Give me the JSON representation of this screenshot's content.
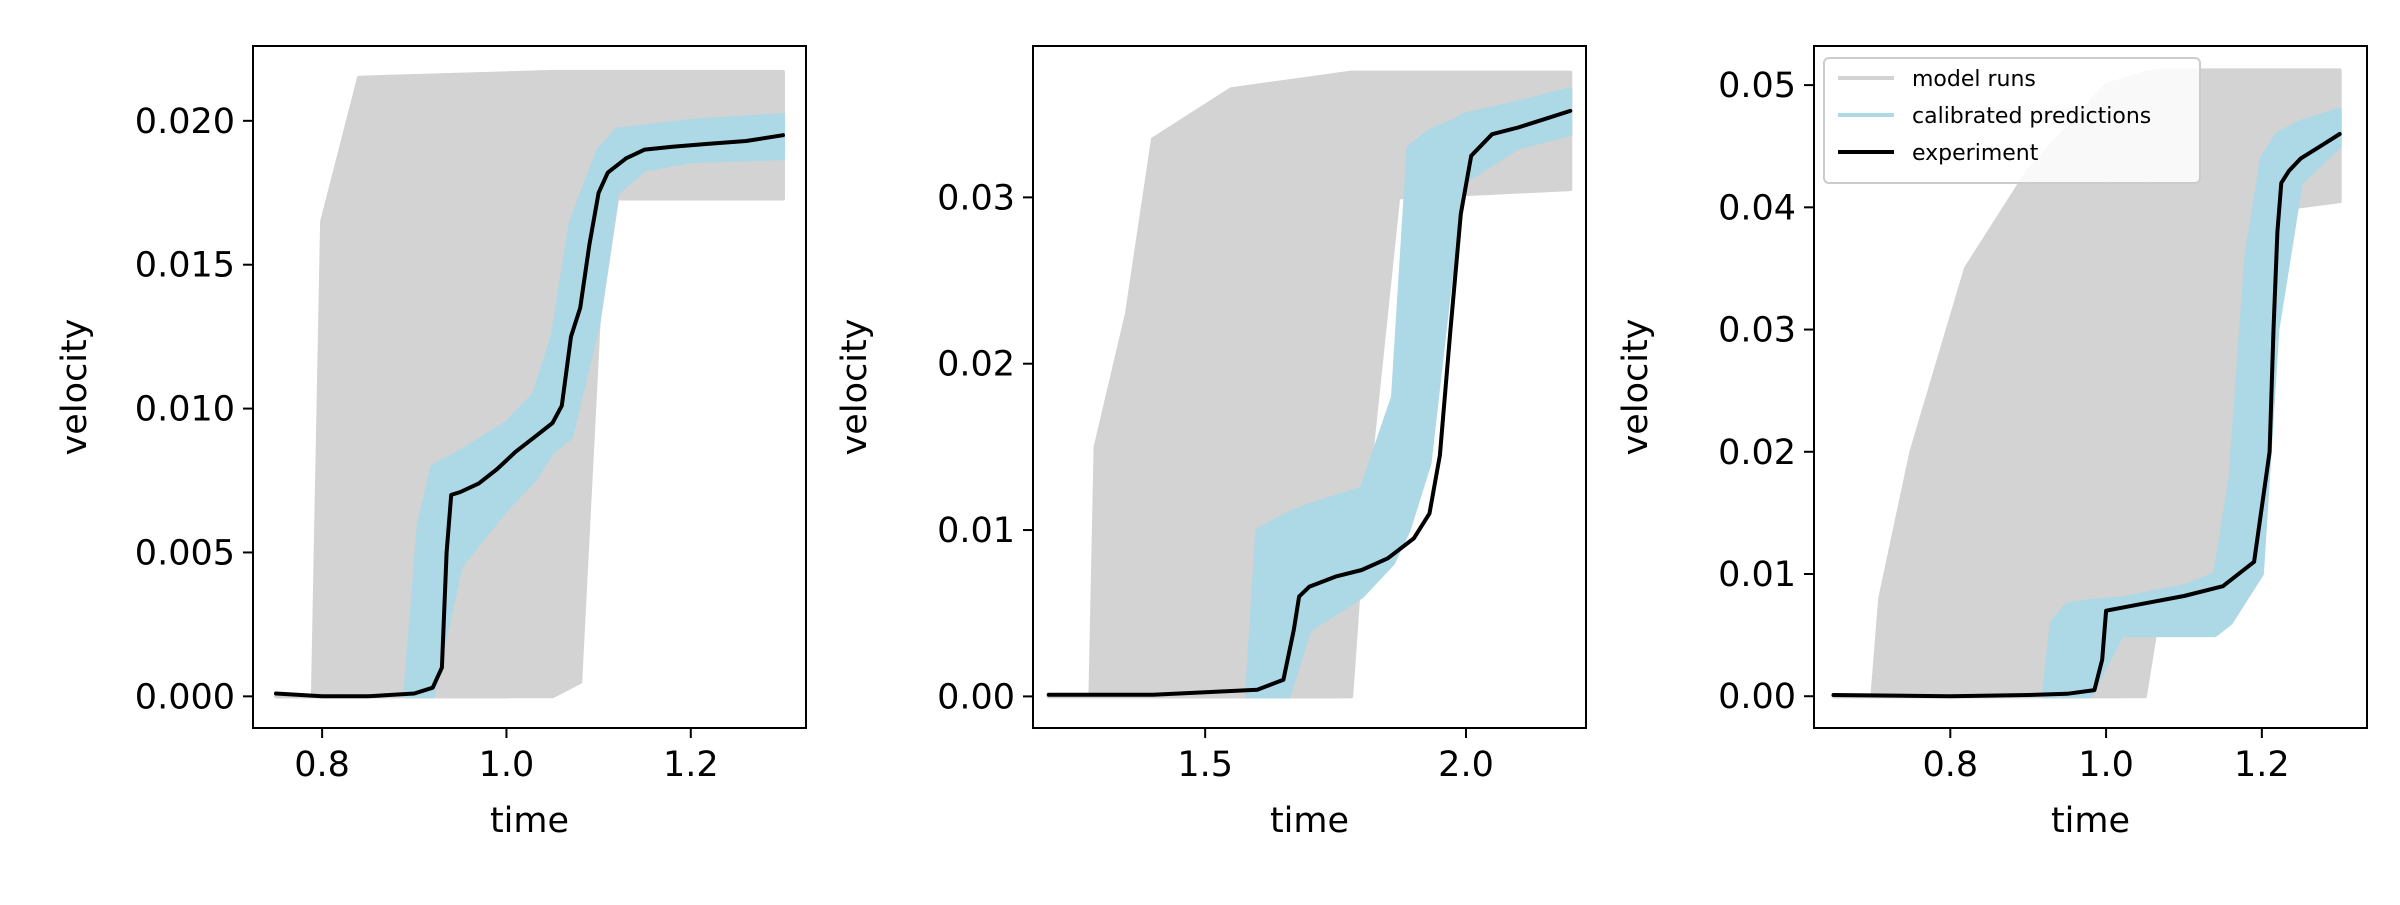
{
  "chart_data": [
    {
      "type": "line",
      "xlabel": "time",
      "ylabel": "velocity",
      "xlim": [
        0.725,
        1.325
      ],
      "ylim": [
        -0.0011,
        0.0226
      ],
      "xticks": [
        0.8,
        1.0,
        1.2
      ],
      "xtick_labels": [
        "0.8",
        "1.0",
        "1.2"
      ],
      "yticks": [
        0.0,
        0.005,
        0.01,
        0.015,
        0.02
      ],
      "ytick_labels": [
        "0.000",
        "0.005",
        "0.010",
        "0.015",
        "0.020"
      ],
      "legend": null,
      "series": [
        {
          "role": "model_runs",
          "color": "#d3d3d3",
          "envelope": [
            [
              0.75,
              0.0,
              0.0
            ],
            [
              0.79,
              0.0,
              0.0
            ],
            [
              0.8,
              0.0,
              0.0165
            ],
            [
              0.84,
              0.0,
              0.0215
            ],
            [
              1.05,
              0.0,
              0.0217
            ],
            [
              1.08,
              0.0005,
              0.0217
            ],
            [
              1.1,
              0.013,
              0.0217
            ],
            [
              1.12,
              0.0173,
              0.0217
            ],
            [
              1.3,
              0.0173,
              0.0217
            ]
          ],
          "runs": [
            {
              "x": [
                0.75,
                0.805,
                0.81,
                0.85,
                1.3
              ],
              "y": [
                0.0,
                0.0,
                0.0165,
                0.0215,
                0.0215
              ]
            },
            {
              "x": [
                0.75,
                0.82,
                0.83,
                0.9,
                1.3
              ],
              "y": [
                0.0,
                0.0,
                0.018,
                0.0205,
                0.0205
              ]
            },
            {
              "x": [
                0.75,
                0.85,
                0.86,
                0.95,
                1.3
              ],
              "y": [
                0.0,
                0.0,
                0.0175,
                0.02,
                0.02
              ]
            },
            {
              "x": [
                0.75,
                0.88,
                0.89,
                1.0,
                1.3
              ],
              "y": [
                0.0,
                0.0,
                0.019,
                0.021,
                0.021
              ]
            },
            {
              "x": [
                0.75,
                1.0,
                1.06,
                1.09,
                1.12,
                1.3
              ],
              "y": [
                0.0,
                0.0,
                0.0005,
                0.011,
                0.0185,
                0.0185
              ]
            },
            {
              "x": [
                0.75,
                1.0,
                1.06,
                1.07,
                1.08,
                1.11,
                1.3
              ],
              "y": [
                0.0,
                0.0,
                0.0008,
                0.002,
                0.008,
                0.0175,
                0.0178
              ]
            }
          ]
        },
        {
          "role": "calibrated_predictions",
          "color": "#add8e6",
          "envelope": [
            [
              0.89,
              0.0,
              0.0
            ],
            [
              0.905,
              0.0,
              0.006
            ],
            [
              0.92,
              0.0,
              0.008
            ],
            [
              0.95,
              0.0045,
              0.0085
            ],
            [
              1.0,
              0.0065,
              0.0095
            ],
            [
              1.03,
              0.0075,
              0.0105
            ],
            [
              1.05,
              0.0085,
              0.0125
            ],
            [
              1.07,
              0.009,
              0.0165
            ],
            [
              1.1,
              0.013,
              0.019
            ],
            [
              1.12,
              0.0175,
              0.0197
            ],
            [
              1.15,
              0.0183,
              0.0198
            ],
            [
              1.2,
              0.0186,
              0.02
            ],
            [
              1.3,
              0.0187,
              0.0202
            ]
          ]
        },
        {
          "name": "experiment",
          "role": "experiment",
          "color": "#000000",
          "x": [
            0.75,
            0.8,
            0.85,
            0.9,
            0.92,
            0.93,
            0.935,
            0.94,
            0.95,
            0.97,
            0.99,
            1.01,
            1.03,
            1.05,
            1.06,
            1.07,
            1.08,
            1.09,
            1.1,
            1.11,
            1.13,
            1.15,
            1.18,
            1.22,
            1.26,
            1.3
          ],
          "y": [
            0.0001,
            0.0,
            0.0,
            0.0001,
            0.0003,
            0.001,
            0.005,
            0.007,
            0.0071,
            0.0074,
            0.0079,
            0.0085,
            0.009,
            0.0095,
            0.0101,
            0.0125,
            0.0135,
            0.0157,
            0.0175,
            0.0182,
            0.0187,
            0.019,
            0.0191,
            0.0192,
            0.0193,
            0.0195
          ]
        }
      ]
    },
    {
      "type": "line",
      "xlabel": "time",
      "ylabel": "velocity",
      "xlim": [
        1.17,
        2.23
      ],
      "ylim": [
        -0.0019,
        0.0391
      ],
      "xticks": [
        1.5,
        2.0
      ],
      "xtick_labels": [
        "1.5",
        "2.0"
      ],
      "yticks": [
        0.0,
        0.01,
        0.02,
        0.03
      ],
      "ytick_labels": [
        "0.00",
        "0.01",
        "0.02",
        "0.03"
      ],
      "legend": null,
      "series": [
        {
          "role": "model_runs",
          "color": "#d3d3d3",
          "envelope": [
            [
              1.2,
              0.0,
              0.0
            ],
            [
              1.28,
              0.0,
              0.0
            ],
            [
              1.29,
              0.0,
              0.015
            ],
            [
              1.35,
              0.0,
              0.023
            ],
            [
              1.4,
              0.0,
              0.0335
            ],
            [
              1.55,
              0.0,
              0.0365
            ],
            [
              1.78,
              0.0,
              0.0375
            ],
            [
              1.8,
              0.009,
              0.0375
            ],
            [
              1.87,
              0.03,
              0.0375
            ],
            [
              2.2,
              0.0305,
              0.0375
            ]
          ],
          "runs": [
            {
              "x": [
                1.2,
                1.3,
                1.31,
                1.4,
                1.41,
                1.55,
                2.2
              ],
              "y": [
                0.0,
                0.0,
                0.015,
                0.02,
                0.033,
                0.036,
                0.0365
              ]
            },
            {
              "x": [
                1.2,
                1.42,
                1.43,
                1.5,
                1.51,
                1.65,
                2.2
              ],
              "y": [
                0.0,
                0.0,
                0.016,
                0.022,
                0.03,
                0.035,
                0.0355
              ]
            },
            {
              "x": [
                1.2,
                1.55,
                1.56,
                1.7,
                1.71,
                2.2
              ],
              "y": [
                0.0,
                0.0,
                0.025,
                0.028,
                0.034,
                0.0345
              ]
            },
            {
              "x": [
                1.2,
                1.75,
                1.76,
                1.85,
                2.2
              ],
              "y": [
                0.0,
                0.0,
                0.01,
                0.033,
                0.034
              ]
            }
          ]
        },
        {
          "role": "calibrated_predictions",
          "color": "#add8e6",
          "envelope": [
            [
              1.58,
              0.0,
              0.0
            ],
            [
              1.6,
              0.0,
              0.01
            ],
            [
              1.66,
              0.0,
              0.011
            ],
            [
              1.7,
              0.004,
              0.0115
            ],
            [
              1.8,
              0.006,
              0.0125
            ],
            [
              1.86,
              0.008,
              0.018
            ],
            [
              1.89,
              0.01,
              0.033
            ],
            [
              1.93,
              0.014,
              0.034
            ],
            [
              1.97,
              0.025,
              0.0345
            ],
            [
              2.0,
              0.031,
              0.035
            ],
            [
              2.1,
              0.033,
              0.0357
            ],
            [
              2.2,
              0.0338,
              0.0365
            ]
          ]
        },
        {
          "name": "experiment",
          "role": "experiment",
          "color": "#000000",
          "x": [
            1.2,
            1.4,
            1.6,
            1.65,
            1.67,
            1.68,
            1.7,
            1.75,
            1.8,
            1.85,
            1.9,
            1.93,
            1.95,
            1.97,
            1.99,
            2.01,
            2.05,
            2.1,
            2.15,
            2.2
          ],
          "y": [
            0.0001,
            0.0001,
            0.0004,
            0.001,
            0.004,
            0.006,
            0.0066,
            0.0072,
            0.0076,
            0.0083,
            0.0095,
            0.011,
            0.0145,
            0.022,
            0.029,
            0.0325,
            0.0338,
            0.0342,
            0.0347,
            0.0352
          ]
        }
      ]
    },
    {
      "type": "line",
      "xlabel": "time",
      "ylabel": "velocity",
      "xlim": [
        0.625,
        1.335
      ],
      "ylim": [
        -0.0026,
        0.0532
      ],
      "xticks": [
        0.8,
        1.0,
        1.2
      ],
      "xtick_labels": [
        "0.8",
        "1.0",
        "1.2"
      ],
      "yticks": [
        0.0,
        0.01,
        0.02,
        0.03,
        0.04,
        0.05
      ],
      "ytick_labels": [
        "0.00",
        "0.01",
        "0.02",
        "0.03",
        "0.04",
        "0.05"
      ],
      "legend": {
        "position": "upper-left",
        "entries": [
          {
            "label": "model runs",
            "color": "#d3d3d3"
          },
          {
            "label": "calibrated predictions",
            "color": "#add8e6"
          },
          {
            "label": "experiment",
            "color": "#000000"
          }
        ]
      },
      "series": [
        {
          "name": "model runs",
          "role": "model_runs",
          "color": "#d3d3d3",
          "envelope": [
            [
              0.65,
              0.0,
              0.0
            ],
            [
              0.7,
              0.0,
              0.0
            ],
            [
              0.71,
              0.0,
              0.008
            ],
            [
              0.75,
              0.0,
              0.02
            ],
            [
              0.82,
              0.0,
              0.035
            ],
            [
              0.9,
              0.0,
              0.043
            ],
            [
              1.0,
              0.0,
              0.05
            ],
            [
              1.05,
              0.0,
              0.051
            ],
            [
              1.07,
              0.008,
              0.0512
            ],
            [
              1.15,
              0.009,
              0.0512
            ],
            [
              1.19,
              0.012,
              0.0512
            ],
            [
              1.21,
              0.035,
              0.0512
            ],
            [
              1.24,
              0.04,
              0.0512
            ],
            [
              1.3,
              0.0405,
              0.0512
            ]
          ],
          "runs": [
            {
              "x": [
                0.65,
                0.72,
                0.73,
                0.82,
                0.83,
                0.9,
                1.3
              ],
              "y": [
                0.0,
                0.0,
                0.01,
                0.02,
                0.031,
                0.043,
                0.045
              ]
            },
            {
              "x": [
                0.65,
                0.8,
                0.81,
                0.88,
                0.89,
                1.0,
                1.3
              ],
              "y": [
                0.0,
                0.0,
                0.015,
                0.022,
                0.035,
                0.046,
                0.047
              ]
            },
            {
              "x": [
                0.65,
                0.86,
                0.87,
                0.95,
                0.96,
                1.3
              ],
              "y": [
                0.0,
                0.0,
                0.02,
                0.025,
                0.042,
                0.044
              ]
            },
            {
              "x": [
                0.65,
                1.02,
                1.03,
                1.06,
                1.08,
                1.3
              ],
              "y": [
                0.0,
                0.0,
                0.01,
                0.042,
                0.049,
                0.05
              ]
            }
          ]
        },
        {
          "name": "calibrated predictions",
          "role": "calibrated_predictions",
          "color": "#add8e6",
          "envelope": [
            [
              0.92,
              0.0,
              0.0
            ],
            [
              0.93,
              0.0,
              0.006
            ],
            [
              0.95,
              0.0,
              0.0075
            ],
            [
              0.98,
              0.0,
              0.0078
            ],
            [
              1.02,
              0.005,
              0.008
            ],
            [
              1.1,
              0.005,
              0.009
            ],
            [
              1.14,
              0.005,
              0.01
            ],
            [
              1.16,
              0.006,
              0.018
            ],
            [
              1.18,
              0.008,
              0.036
            ],
            [
              1.2,
              0.01,
              0.044
            ],
            [
              1.22,
              0.03,
              0.046
            ],
            [
              1.25,
              0.042,
              0.047
            ],
            [
              1.3,
              0.045,
              0.048
            ]
          ]
        },
        {
          "name": "experiment",
          "role": "experiment",
          "color": "#000000",
          "x": [
            0.65,
            0.8,
            0.9,
            0.95,
            0.985,
            0.995,
            1.0,
            1.05,
            1.1,
            1.15,
            1.19,
            1.21,
            1.215,
            1.22,
            1.225,
            1.235,
            1.25,
            1.28,
            1.3
          ],
          "y": [
            0.0001,
            0.0,
            0.0001,
            0.0002,
            0.0005,
            0.003,
            0.007,
            0.0076,
            0.0082,
            0.009,
            0.011,
            0.02,
            0.03,
            0.038,
            0.042,
            0.043,
            0.044,
            0.0452,
            0.046
          ]
        }
      ]
    }
  ]
}
